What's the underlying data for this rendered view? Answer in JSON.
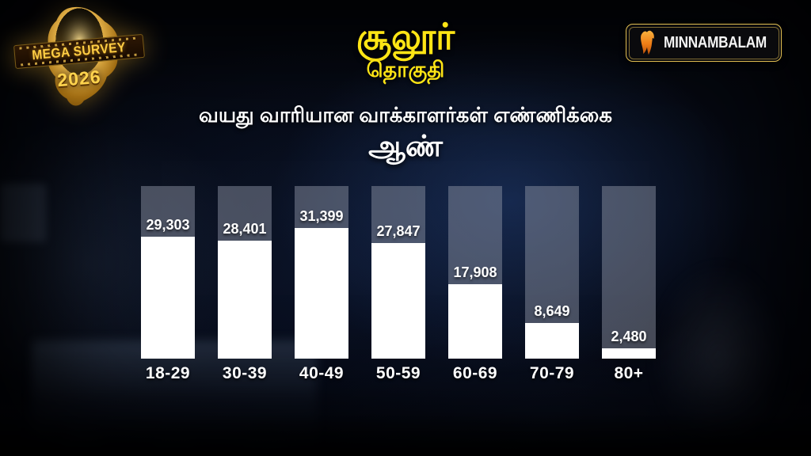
{
  "logo": {
    "line1": "MEGA SURVEY",
    "line2": "2026"
  },
  "brand": {
    "name": "MINNAMBALAM"
  },
  "header": {
    "title": "சூலூர்",
    "subtitle": "தொகுதி"
  },
  "section": {
    "heading": "வயது வாரியான வாக்காளர்கள் எண்ணிக்கை",
    "gender": "ஆண்"
  },
  "chart_data": {
    "type": "bar",
    "title": "வயது வாரியான வாக்காளர்கள் எண்ணிக்கை — ஆண் (சூலூர் தொகுதி)",
    "categories": [
      "18-29",
      "30-39",
      "40-49",
      "50-59",
      "60-69",
      "70-79",
      "80+"
    ],
    "values": [
      29303,
      28401,
      31399,
      27847,
      17908,
      8649,
      2480
    ],
    "value_labels": [
      "29,303",
      "28,401",
      "31,399",
      "27,847",
      "17,908",
      "8,649",
      "2,480"
    ],
    "xlabel": "",
    "ylabel": "",
    "ylim": [
      0,
      41600
    ],
    "grid": false,
    "legend": "none",
    "bar_fill_color": "#ffffff",
    "bar_track_color": "rgba(143,149,165,0.48)",
    "value_label_position": "above-fill"
  },
  "colors": {
    "accent_yellow": "#ffe515",
    "text_white": "#ffffff",
    "brand_gold": "#e3c054",
    "brand_orange": "#f7941d",
    "background": "#03050b"
  }
}
